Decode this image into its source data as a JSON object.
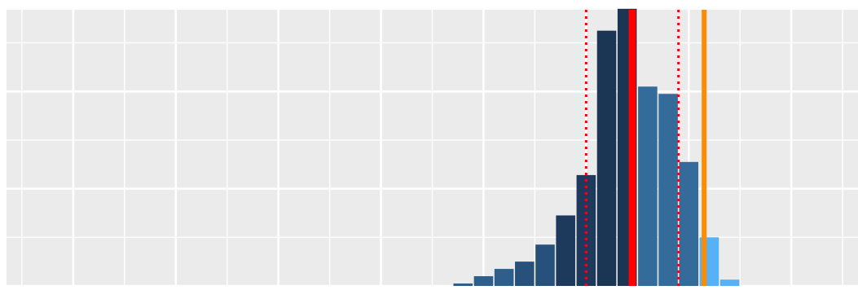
{
  "chart_data": {
    "type": "bar",
    "subtype": "histogram",
    "title": "",
    "xlabel": "",
    "ylabel": "",
    "xlim": [
      0.35,
      8.65
    ],
    "ylim": [
      0,
      56.8
    ],
    "axis_tick_labels_visible": false,
    "x_major_gridlines": [
      1,
      2,
      3,
      4,
      5,
      6,
      7,
      8
    ],
    "x_minor_gridlines": [
      0.5,
      1.5,
      2.5,
      3.5,
      4.5,
      5.5,
      6.5,
      7.5,
      8.5
    ],
    "y_major_gridlines": [
      0,
      20,
      40
    ],
    "y_minor_gridlines": [
      10,
      30,
      50
    ],
    "grid": true,
    "panel_background": "#EBEBEB",
    "grid_color": "#FFFFFF",
    "bin_width": 0.2,
    "bins": [
      {
        "x": 4.8,
        "value": 0.5,
        "color": "#2E5E8C"
      },
      {
        "x": 5.0,
        "value": 2.0,
        "color": "#2E5E8C"
      },
      {
        "x": 5.2,
        "value": 3.5,
        "color": "#2E5E8C"
      },
      {
        "x": 5.4,
        "value": 5.0,
        "color": "#27507A"
      },
      {
        "x": 5.6,
        "value": 8.5,
        "color": "#27507A"
      },
      {
        "x": 5.8,
        "value": 14.5,
        "color": "#1D3A5C"
      },
      {
        "x": 6.0,
        "value": 22.8,
        "color": "#1D3A5C"
      },
      {
        "x": 6.2,
        "value": 52.5,
        "color": "#1B3555"
      },
      {
        "x": 6.4,
        "value": 57.0,
        "color": "#1B3555"
      },
      {
        "x": 6.6,
        "value": 41.0,
        "color": "#336B9B"
      },
      {
        "x": 6.8,
        "value": 39.5,
        "color": "#336B9B"
      },
      {
        "x": 7.0,
        "value": 25.5,
        "color": "#336B9B"
      },
      {
        "x": 7.2,
        "value": 10.0,
        "color": "#56B1F7"
      },
      {
        "x": 7.4,
        "value": 1.3,
        "color": "#56B1F7"
      }
    ],
    "reference_lines": [
      {
        "kind": "mean",
        "x": 6.45,
        "color": "#FF0000",
        "style": "solid"
      },
      {
        "kind": "lower-interval",
        "x": 6.0,
        "color": "#FF0000",
        "style": "dotted"
      },
      {
        "kind": "upper-interval",
        "x": 6.9,
        "color": "#FF0000",
        "style": "dotted"
      },
      {
        "kind": "observed",
        "x": 7.15,
        "color": "#FF8C00",
        "style": "solid"
      }
    ]
  }
}
